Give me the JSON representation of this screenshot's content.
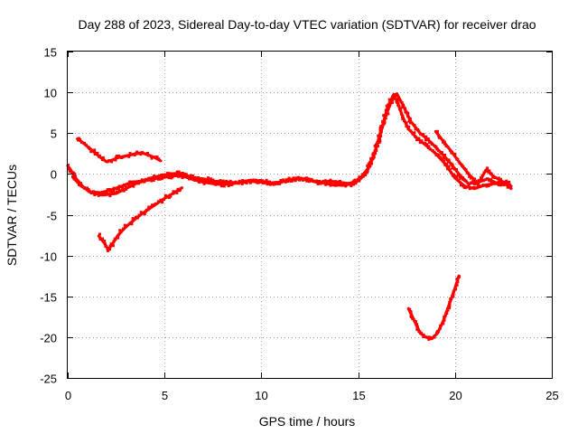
{
  "colors": {
    "series": "#ff0000",
    "grid": "#a0a0a0",
    "axis": "#000000",
    "background": "#ffffff"
  },
  "chart_data": {
    "type": "scatter",
    "title": "Day 288 of 2023, Sidereal Day-to-day VTEC variation (SDTVAR) for receiver drao",
    "xlabel": "GPS time / hours",
    "ylabel": "SDTVAR / TECUs",
    "xlim": [
      0,
      25
    ],
    "ylim": [
      -25,
      15
    ],
    "xticks": [
      0,
      5,
      10,
      15,
      20,
      25
    ],
    "yticks": [
      -25,
      -20,
      -15,
      -10,
      -5,
      0,
      5,
      10,
      15
    ],
    "grid": true,
    "series": [
      {
        "name": "track-main-1",
        "x": [
          0.0,
          0.2,
          0.5,
          0.8,
          1.2,
          1.8,
          2.5,
          3.0,
          3.5,
          4.0,
          4.5,
          5.0,
          5.5,
          6.0,
          6.5,
          7.0,
          7.5,
          8.0,
          8.5,
          9.0,
          9.5,
          10.0,
          10.5,
          11.0,
          11.5,
          12.0,
          12.5,
          13.0,
          13.5,
          14.0,
          14.5,
          15.0,
          15.3,
          15.6,
          15.9,
          16.2,
          16.5,
          16.8,
          17.0,
          17.3,
          17.6,
          18.0,
          18.5,
          19.0,
          19.5,
          20.0,
          20.5,
          21.0,
          21.5,
          22.0,
          22.5,
          22.9
        ],
        "y": [
          1.0,
          0.3,
          -0.8,
          -1.6,
          -2.3,
          -2.6,
          -2.4,
          -1.8,
          -1.2,
          -0.8,
          -0.6,
          -0.4,
          -0.2,
          -0.3,
          -0.7,
          -1.0,
          -1.2,
          -1.3,
          -1.2,
          -1.0,
          -0.8,
          -0.9,
          -1.1,
          -1.0,
          -0.7,
          -0.6,
          -0.8,
          -1.1,
          -0.9,
          -1.0,
          -1.2,
          -0.8,
          0.0,
          1.0,
          3.0,
          5.5,
          8.0,
          9.6,
          9.0,
          7.0,
          5.5,
          4.5,
          3.5,
          2.5,
          1.2,
          -0.5,
          -1.5,
          -1.8,
          -1.4,
          -1.2,
          -1.2,
          -1.5
        ]
      },
      {
        "name": "track-main-2",
        "x": [
          0.3,
          0.7,
          1.2,
          1.7,
          2.2,
          2.8,
          3.3,
          3.8,
          4.3,
          4.8,
          5.3,
          5.8,
          6.4,
          7.0,
          7.6,
          8.2,
          8.8,
          9.4,
          10.0,
          10.6,
          11.2,
          11.8,
          12.4,
          13.0,
          13.6,
          14.2,
          14.8,
          15.2,
          15.5,
          15.8,
          16.1,
          16.4,
          16.7,
          17.0,
          17.3,
          17.7,
          18.2,
          18.7,
          19.2,
          19.7,
          20.2,
          20.7,
          21.2,
          21.7,
          22.2,
          22.8
        ],
        "y": [
          -0.5,
          -1.5,
          -2.2,
          -2.3,
          -2.0,
          -1.5,
          -1.0,
          -0.9,
          -0.5,
          -0.2,
          0.0,
          0.1,
          -0.4,
          -0.6,
          -0.9,
          -1.0,
          -1.1,
          -0.9,
          -1.0,
          -1.2,
          -0.9,
          -0.5,
          -0.7,
          -1.0,
          -1.3,
          -1.4,
          -1.2,
          -0.4,
          0.6,
          2.2,
          4.5,
          7.0,
          8.8,
          9.8,
          8.5,
          6.5,
          5.0,
          4.0,
          2.8,
          1.5,
          0.0,
          -1.2,
          -1.0,
          -0.6,
          -1.2,
          -1.0
        ]
      },
      {
        "name": "track-upper",
        "x": [
          0.5,
          0.8,
          1.1,
          1.4,
          1.7,
          2.0,
          2.3,
          2.6,
          3.0,
          3.4,
          3.8,
          4.2,
          4.5,
          4.8
        ],
        "y": [
          4.3,
          3.8,
          3.2,
          2.6,
          2.0,
          1.5,
          1.7,
          2.0,
          2.2,
          2.4,
          2.6,
          2.3,
          2.0,
          1.6
        ]
      },
      {
        "name": "track-rising",
        "x": [
          1.6,
          1.9,
          2.1,
          2.3,
          2.6,
          3.0,
          3.5,
          4.0,
          4.5,
          5.0,
          5.5,
          5.9
        ],
        "y": [
          -7.6,
          -8.5,
          -9.3,
          -8.6,
          -7.5,
          -6.5,
          -5.5,
          -4.6,
          -3.8,
          -3.0,
          -2.3,
          -1.7
        ]
      },
      {
        "name": "track-dip",
        "x": [
          17.6,
          17.9,
          18.2,
          18.5,
          18.8,
          19.1,
          19.4,
          19.7,
          20.0,
          20.2
        ],
        "y": [
          -16.5,
          -18.0,
          -19.5,
          -20.0,
          -20.2,
          -19.5,
          -18.0,
          -16.0,
          -14.0,
          -12.5
        ]
      },
      {
        "name": "track-late",
        "x": [
          19.0,
          19.4,
          19.8,
          20.2,
          20.7,
          21.2,
          21.6,
          22.0,
          22.5,
          22.9
        ],
        "y": [
          5.2,
          4.0,
          2.8,
          1.5,
          0.0,
          -1.2,
          0.5,
          -0.3,
          -1.0,
          -1.8
        ]
      }
    ]
  }
}
